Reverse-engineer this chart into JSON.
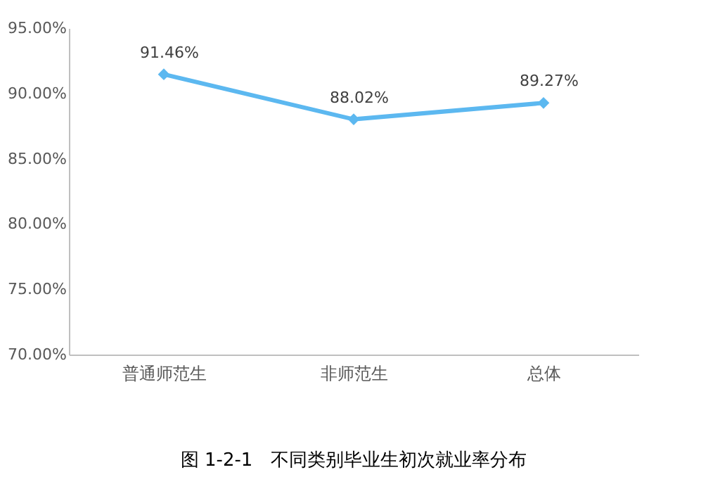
{
  "chart_data": {
    "type": "line",
    "title": "图 1-2-1　不同类别毕业生初次就业率分布",
    "categories": [
      "普通师范生",
      "非师范生",
      "总体"
    ],
    "series": [
      {
        "color": "#5cb8f0",
        "values": [
          91.46,
          88.02,
          89.27
        ],
        "value_labels": [
          "91.46%",
          "88.02%",
          "89.27%"
        ]
      }
    ],
    "ylim": [
      70,
      95
    ],
    "yticks": [
      {
        "value": 70,
        "label": "70.00%"
      },
      {
        "value": 75,
        "label": "75.00%"
      },
      {
        "value": 80,
        "label": "80.00%"
      },
      {
        "value": 85,
        "label": "85.00%"
      },
      {
        "value": 90,
        "label": "90.00%"
      },
      {
        "value": 95,
        "label": "95.00%"
      }
    ],
    "grid": false,
    "marker": "diamond",
    "line_style": "solid"
  }
}
